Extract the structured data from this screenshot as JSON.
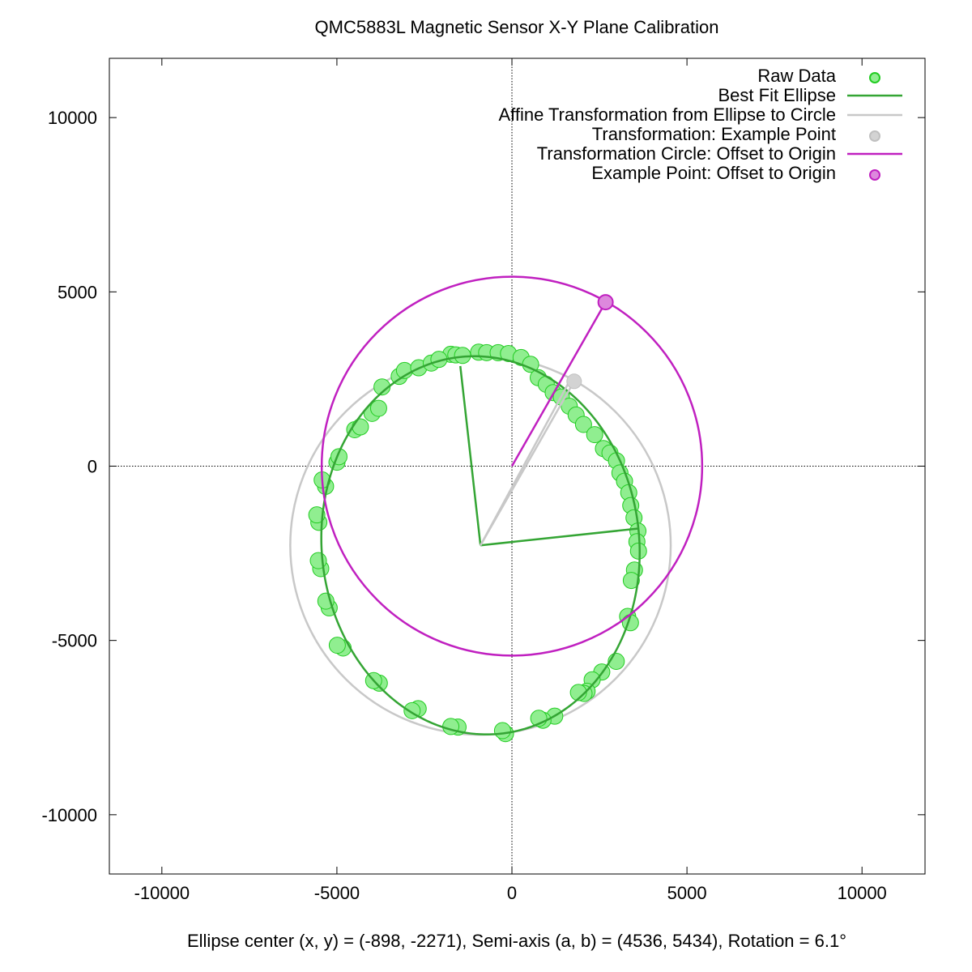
{
  "chart_data": {
    "type": "scatter",
    "title": "QMC5883L Magnetic Sensor X-Y Plane Calibration",
    "xlabel": "Ellipse center (x, y) = (-898, -2271), Semi-axis (a, b) = (4536, 5434), Rotation = 6.1°",
    "ylabel": "",
    "xlim": [
      -11500,
      11800
    ],
    "ylim": [
      -11700,
      11700
    ],
    "x_ticks": [
      -10000,
      -5000,
      0,
      5000,
      10000
    ],
    "y_ticks": [
      10000,
      5000,
      0,
      -5000,
      -10000
    ],
    "x_tick_labels": [
      "-10000",
      "-5000",
      "0",
      "5000",
      "10000"
    ],
    "y_tick_labels": [
      "10000",
      "5000",
      "0",
      "-5000",
      "-10000"
    ],
    "zero_axes": true,
    "grid": false,
    "legend_position": "top-right",
    "ellipse": {
      "cx": -898,
      "cy": -2271,
      "a": 4536,
      "b": 5434,
      "rotation_deg": 6.1
    },
    "transformation_circle": {
      "cx": -898,
      "cy": -2271,
      "r": 5434
    },
    "offset_circle": {
      "cx": 0,
      "cy": 0,
      "r": 5434
    },
    "axis_lines": [
      {
        "x": [
          -898,
          3610
        ],
        "y": [
          -2271,
          -1790
        ]
      },
      {
        "x": [
          -898,
          -1475
        ],
        "y": [
          -2271,
          2871
        ]
      }
    ],
    "example_point_raw": {
      "x": 1647,
      "y": 2443
    },
    "example_point_transformed": {
      "x": 1777,
      "y": 2433
    },
    "example_point_offset": {
      "x": 2675,
      "y": 4704
    },
    "raw_data": [
      {
        "x": -1747,
        "y": 3209
      },
      {
        "x": -1603,
        "y": 3191
      },
      {
        "x": -1410,
        "y": 3177
      },
      {
        "x": -951,
        "y": 3270
      },
      {
        "x": -722,
        "y": 3257
      },
      {
        "x": -394,
        "y": 3255
      },
      {
        "x": -98,
        "y": 3231
      },
      {
        "x": 262,
        "y": 3118
      },
      {
        "x": 533,
        "y": 2921
      },
      {
        "x": 752,
        "y": 2538
      },
      {
        "x": 981,
        "y": 2347
      },
      {
        "x": 1179,
        "y": 2110
      },
      {
        "x": 1412,
        "y": 1983
      },
      {
        "x": 1638,
        "y": 1720
      },
      {
        "x": 1834,
        "y": 1466
      },
      {
        "x": 2045,
        "y": 1197
      },
      {
        "x": 2364,
        "y": 904
      },
      {
        "x": 2614,
        "y": 504
      },
      {
        "x": 2800,
        "y": 377
      },
      {
        "x": 2987,
        "y": 153
      },
      {
        "x": 3085,
        "y": -195
      },
      {
        "x": 3216,
        "y": -432
      },
      {
        "x": 3337,
        "y": -760
      },
      {
        "x": 3394,
        "y": -1129
      },
      {
        "x": 3487,
        "y": -1480
      },
      {
        "x": 3599,
        "y": -1861
      },
      {
        "x": 3570,
        "y": -2168
      },
      {
        "x": 3615,
        "y": -2436
      },
      {
        "x": 3500,
        "y": -2979
      },
      {
        "x": 3410,
        "y": -3278
      },
      {
        "x": 3305,
        "y": -4310
      },
      {
        "x": 3385,
        "y": -4492
      },
      {
        "x": 2980,
        "y": -5600
      },
      {
        "x": 2566,
        "y": -5906
      },
      {
        "x": 2291,
        "y": -6130
      },
      {
        "x": 2147,
        "y": -6458
      },
      {
        "x": 2059,
        "y": -6521
      },
      {
        "x": 1900,
        "y": -6493
      },
      {
        "x": 1222,
        "y": -7172
      },
      {
        "x": 886,
        "y": -7290
      },
      {
        "x": 766,
        "y": -7234
      },
      {
        "x": -184,
        "y": -7674
      },
      {
        "x": -269,
        "y": -7587
      },
      {
        "x": -1539,
        "y": -7486
      },
      {
        "x": -1746,
        "y": -7469
      },
      {
        "x": -2678,
        "y": -6958
      },
      {
        "x": -2851,
        "y": -7015
      },
      {
        "x": -3788,
        "y": -6226
      },
      {
        "x": -3950,
        "y": -6153
      },
      {
        "x": -4823,
        "y": -5217
      },
      {
        "x": -4989,
        "y": -5138
      },
      {
        "x": -5221,
        "y": -4064
      },
      {
        "x": -5315,
        "y": -3872
      },
      {
        "x": -5462,
        "y": -2939
      },
      {
        "x": -5530,
        "y": -2710
      },
      {
        "x": -5516,
        "y": -1611
      },
      {
        "x": -5574,
        "y": -1398
      },
      {
        "x": -5324,
        "y": -579
      },
      {
        "x": -5421,
        "y": -396
      },
      {
        "x": -4998,
        "y": 113
      },
      {
        "x": -4941,
        "y": 271
      },
      {
        "x": -4490,
        "y": 1046
      },
      {
        "x": -4329,
        "y": 1126
      },
      {
        "x": -3995,
        "y": 1514
      },
      {
        "x": -3808,
        "y": 1659
      },
      {
        "x": -3711,
        "y": 2272
      },
      {
        "x": -3220,
        "y": 2575
      },
      {
        "x": -3068,
        "y": 2745
      },
      {
        "x": -2663,
        "y": 2822
      },
      {
        "x": -2304,
        "y": 2957
      },
      {
        "x": -2085,
        "y": 3063
      }
    ]
  },
  "legend": [
    {
      "label": "Raw Data",
      "kind": "point",
      "color": "#90ee90",
      "stroke": "#22cc22"
    },
    {
      "label": "Best Fit Ellipse",
      "kind": "line",
      "color": "#34a534"
    },
    {
      "label": "Affine Transformation from Ellipse to Circle",
      "kind": "line",
      "color": "#c8c8c8"
    },
    {
      "label": "Transformation: Example Point",
      "kind": "point",
      "color": "#d3d3d3",
      "stroke": "#c0c0c0"
    },
    {
      "label": "Transformation Circle: Offset to Origin",
      "kind": "line",
      "color": "#c020c0"
    },
    {
      "label": "Example Point: Offset to Origin",
      "kind": "point",
      "color": "#dd88dd",
      "stroke": "#c020c0"
    }
  ],
  "colors": {
    "ellipse": "#34a534",
    "raw_fill": "#90ee90",
    "raw_stroke": "#22cc22",
    "transform_gray": "#c8c8c8",
    "magenta": "#c020c0",
    "magenta_fill": "#dd88dd"
  }
}
